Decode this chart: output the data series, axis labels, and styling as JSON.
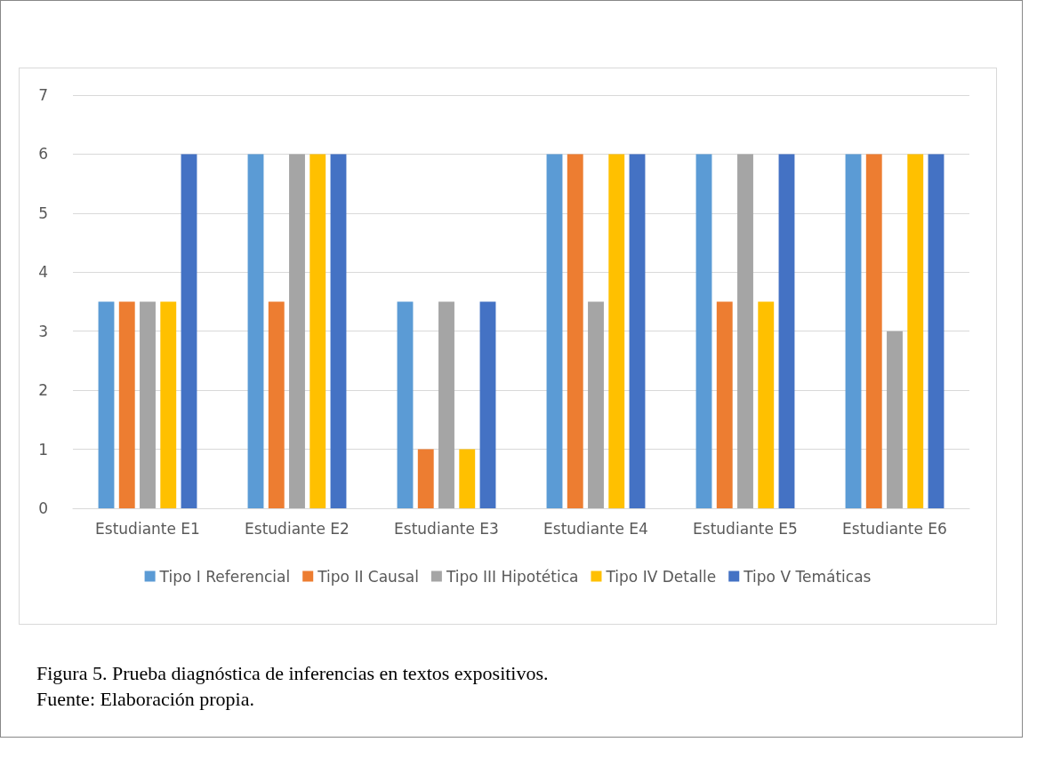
{
  "chart_data": {
    "type": "bar",
    "categories": [
      "Estudiante E1",
      "Estudiante E2",
      "Estudiante E3",
      "Estudiante E4",
      "Estudiante E5",
      "Estudiante E6"
    ],
    "series": [
      {
        "name": "Tipo I Referencial",
        "color": "#5b9bd5",
        "values": [
          3.5,
          6,
          3.5,
          6,
          6,
          6
        ]
      },
      {
        "name": "Tipo II Causal",
        "color": "#ed7d31",
        "values": [
          3.5,
          3.5,
          1,
          6,
          3.5,
          6
        ]
      },
      {
        "name": "Tipo III Hipotética",
        "color": "#a5a5a5",
        "values": [
          3.5,
          6,
          3.5,
          3.5,
          6,
          3
        ]
      },
      {
        "name": "Tipo IV Detalle",
        "color": "#ffc000",
        "values": [
          3.5,
          6,
          1,
          6,
          3.5,
          6
        ]
      },
      {
        "name": "Tipo V Temáticas",
        "color": "#4472c4",
        "values": [
          6,
          6,
          3.5,
          6,
          6,
          6
        ]
      }
    ],
    "ylim": [
      0,
      7
    ],
    "yticks": [
      0,
      1,
      2,
      3,
      4,
      5,
      6,
      7
    ],
    "grid": "y",
    "legend": "bottom",
    "annotations": [
      "Figura 5. Prueba diagnóstica de inferencias en textos expositivos.",
      "Fuente: Elaboración propia."
    ]
  }
}
